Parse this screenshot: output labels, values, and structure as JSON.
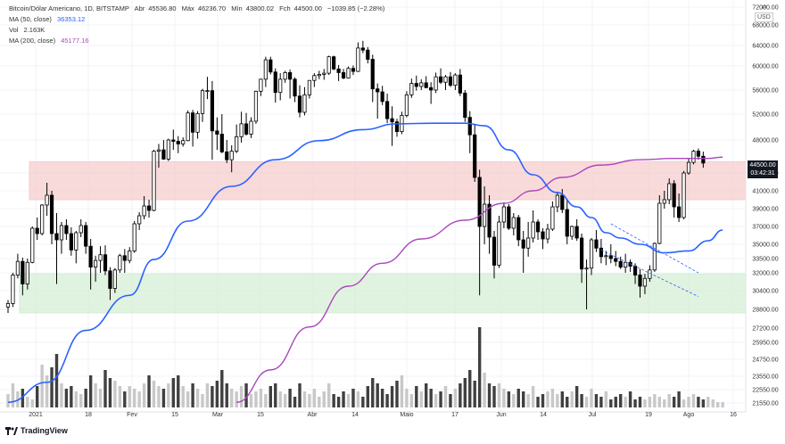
{
  "legend": {
    "symbol": "Bitcoin/Dólar Americano, 1D, BITSTAMP",
    "open_label": "Abr",
    "open": "45536.80",
    "high_label": "Máx",
    "high": "46236.70",
    "low_label": "Mín",
    "low": "43800.02",
    "close_label": "Fch",
    "close": "44500.00",
    "change": "−1039.85 (−2.28%)",
    "ma50_label": "MA (50, close)",
    "ma50_value": "36353.12",
    "vol_label": "Vol",
    "vol_value": "2.163K",
    "ma200_label": "MA (200, close)",
    "ma200_value": "45177.16"
  },
  "price_tag": {
    "price": "44500.00",
    "countdown": "03:42:31"
  },
  "currency": {
    "arrows": "⇄",
    "unit": "USD"
  },
  "branding": {
    "name": "TradingView"
  },
  "colors": {
    "up": "#ffffff",
    "down": "#000000",
    "ma50": "#2962ff",
    "ma200": "#ab47bc",
    "resistance_zone": "#f6c6c6",
    "support_zone": "#cfeccf",
    "volume_up": "#c8c8c8",
    "volume_down": "#404040",
    "trendline": "#2962ff"
  },
  "chart_data": {
    "type": "candlestick",
    "title": "Bitcoin/Dólar Americano, 1D, BITSTAMP",
    "y_ticks": [
      "21550.00",
      "22550.00",
      "23550.00",
      "24750.00",
      "25950.00",
      "27200.00",
      "28800.00",
      "30400.00",
      "32000.00",
      "33500.00",
      "35000.00",
      "37000.00",
      "39000.00",
      "41000.00",
      "43000.00",
      "48000.00",
      "52000.00",
      "56000.00",
      "60000.00",
      "64000.00",
      "68000.00",
      "72000.00"
    ],
    "x_ticks": [
      "2021",
      "18",
      "Fev",
      "15",
      "Mar",
      "15",
      "Abr",
      "14",
      "Maio",
      "17",
      "Jun",
      "14",
      "Jul",
      "19",
      "Ago",
      "16"
    ],
    "candles": [
      [
        29000,
        29600,
        28500,
        29300
      ],
      [
        29300,
        32000,
        29000,
        31800
      ],
      [
        31800,
        34000,
        31500,
        33200
      ],
      [
        33200,
        33600,
        30000,
        31000
      ],
      [
        31000,
        33500,
        30500,
        33100
      ],
      [
        33100,
        37000,
        33000,
        36800
      ],
      [
        36800,
        38000,
        35500,
        36200
      ],
      [
        36200,
        39500,
        36000,
        39400
      ],
      [
        39400,
        41900,
        38200,
        40500
      ],
      [
        40500,
        41000,
        35000,
        36200
      ],
      [
        36200,
        38500,
        31000,
        35500
      ],
      [
        35500,
        37500,
        34000,
        37100
      ],
      [
        37100,
        37800,
        35500,
        36200
      ],
      [
        36200,
        36900,
        33800,
        34400
      ],
      [
        34400,
        36500,
        33000,
        36300
      ],
      [
        36300,
        37800,
        35800,
        37100
      ],
      [
        37100,
        37500,
        34000,
        34800
      ],
      [
        34800,
        35600,
        30500,
        32600
      ],
      [
        32600,
        33800,
        31200,
        33300
      ],
      [
        33300,
        34800,
        32000,
        33900
      ],
      [
        33900,
        34900,
        31800,
        32200
      ],
      [
        32200,
        32600,
        29600,
        30600
      ],
      [
        30600,
        32500,
        30200,
        32300
      ],
      [
        32300,
        34000,
        32000,
        33800
      ],
      [
        33800,
        34500,
        32000,
        33300
      ],
      [
        33300,
        34700,
        33000,
        34300
      ],
      [
        34300,
        37600,
        34100,
        37300
      ],
      [
        37300,
        38600,
        36600,
        38200
      ],
      [
        38200,
        40400,
        37800,
        39300
      ],
      [
        39300,
        40000,
        38000,
        38800
      ],
      [
        38800,
        46500,
        38700,
        46300
      ],
      [
        46300,
        47400,
        43800,
        46500
      ],
      [
        46500,
        48000,
        45000,
        45100
      ],
      [
        45100,
        48200,
        44800,
        48000
      ],
      [
        48000,
        49600,
        46500,
        47800
      ],
      [
        47800,
        48600,
        46000,
        47400
      ],
      [
        47400,
        48400,
        47000,
        47900
      ],
      [
        47900,
        52600,
        47800,
        52200
      ],
      [
        52200,
        52700,
        47000,
        49200
      ],
      [
        49200,
        52500,
        48200,
        52100
      ],
      [
        52100,
        56200,
        50800,
        55900
      ],
      [
        55900,
        58200,
        54500,
        55900
      ],
      [
        55900,
        57500,
        45000,
        49400
      ],
      [
        49400,
        51500,
        46500,
        48900
      ],
      [
        48900,
        52000,
        46000,
        46200
      ],
      [
        46200,
        48000,
        44500,
        45000
      ],
      [
        45000,
        47200,
        43100,
        46300
      ],
      [
        46300,
        50400,
        46000,
        48500
      ],
      [
        48500,
        52400,
        47600,
        50500
      ],
      [
        50500,
        52200,
        48700,
        48900
      ],
      [
        48900,
        51500,
        48300,
        50900
      ],
      [
        50900,
        55900,
        50500,
        55800
      ],
      [
        55800,
        57900,
        55000,
        57800
      ],
      [
        57800,
        61800,
        56500,
        61200
      ],
      [
        61200,
        61800,
        58600,
        59000
      ],
      [
        59000,
        59600,
        53900,
        55600
      ],
      [
        55600,
        58800,
        54300,
        57800
      ],
      [
        57800,
        59200,
        57200,
        58900
      ],
      [
        58900,
        59400,
        54600,
        57800
      ],
      [
        57800,
        58100,
        54000,
        55000
      ],
      [
        55000,
        56800,
        51500,
        52300
      ],
      [
        52300,
        56500,
        51800,
        55200
      ],
      [
        55200,
        57600,
        54600,
        57600
      ],
      [
        57600,
        58800,
        56500,
        58400
      ],
      [
        58400,
        59200,
        57800,
        58600
      ],
      [
        58600,
        59500,
        57700,
        58800
      ],
      [
        58800,
        62000,
        58500,
        61800
      ],
      [
        61800,
        62000,
        59300,
        59500
      ],
      [
        59500,
        60200,
        57500,
        58900
      ],
      [
        58900,
        59500,
        57800,
        58000
      ],
      [
        58000,
        59900,
        57900,
        59600
      ],
      [
        59600,
        60100,
        58500,
        59100
      ],
      [
        59100,
        64600,
        59000,
        63500
      ],
      [
        63500,
        64900,
        62500,
        63100
      ],
      [
        63100,
        63700,
        60500,
        61300
      ],
      [
        61300,
        62200,
        54000,
        56200
      ],
      [
        56200,
        57100,
        51300,
        55700
      ],
      [
        55700,
        56700,
        53500,
        54100
      ],
      [
        54100,
        55400,
        50600,
        51300
      ],
      [
        51300,
        53300,
        47100,
        50800
      ],
      [
        50800,
        51300,
        48500,
        49300
      ],
      [
        49300,
        52400,
        48900,
        51800
      ],
      [
        51800,
        55800,
        51500,
        55200
      ],
      [
        55200,
        57900,
        54700,
        57100
      ],
      [
        57100,
        58400,
        55900,
        56600
      ],
      [
        56600,
        57800,
        56000,
        57200
      ],
      [
        57200,
        58300,
        56300,
        56400
      ],
      [
        56400,
        57300,
        53700,
        56000
      ],
      [
        56000,
        58900,
        55500,
        58200
      ],
      [
        58200,
        59600,
        57000,
        57300
      ],
      [
        57300,
        58500,
        56000,
        58200
      ],
      [
        58200,
        59000,
        56500,
        56800
      ],
      [
        56800,
        58800,
        56000,
        58500
      ],
      [
        58500,
        59500,
        55000,
        55500
      ],
      [
        55500,
        56000,
        50800,
        51500
      ],
      [
        51500,
        52500,
        46000,
        48800
      ],
      [
        48800,
        50500,
        42000,
        42500
      ],
      [
        42500,
        43500,
        30000,
        37000
      ],
      [
        37000,
        41500,
        35000,
        39500
      ],
      [
        39500,
        40500,
        34000,
        35800
      ],
      [
        35800,
        36500,
        31500,
        32800
      ],
      [
        32800,
        38200,
        32500,
        37500
      ],
      [
        37500,
        39700,
        36800,
        39200
      ],
      [
        39200,
        39500,
        36600,
        36800
      ],
      [
        36800,
        38500,
        36000,
        38000
      ],
      [
        38000,
        38300,
        34800,
        35500
      ],
      [
        35500,
        36500,
        32000,
        34600
      ],
      [
        34600,
        37500,
        33700,
        35700
      ],
      [
        35700,
        38800,
        35200,
        37500
      ],
      [
        37500,
        37800,
        35500,
        36400
      ],
      [
        36400,
        36800,
        34500,
        35600
      ],
      [
        35600,
        37300,
        35100,
        36700
      ],
      [
        36700,
        39800,
        36500,
        39200
      ],
      [
        39200,
        40900,
        38600,
        40500
      ],
      [
        40500,
        41200,
        38500,
        38900
      ],
      [
        38900,
        40000,
        35000,
        35900
      ],
      [
        35900,
        37100,
        35500,
        37000
      ],
      [
        37000,
        37800,
        35400,
        35700
      ],
      [
        35700,
        36200,
        31100,
        32400
      ],
      [
        32400,
        33400,
        28800,
        32500
      ],
      [
        32500,
        35700,
        31800,
        35500
      ],
      [
        35500,
        36600,
        34200,
        34600
      ],
      [
        34600,
        35600,
        33000,
        33700
      ],
      [
        33700,
        34300,
        32800,
        33800
      ],
      [
        33800,
        35000,
        33000,
        33500
      ],
      [
        33500,
        34300,
        32700,
        33200
      ],
      [
        33200,
        33700,
        32400,
        32600
      ],
      [
        32600,
        34000,
        32000,
        33100
      ],
      [
        33100,
        33400,
        32100,
        32700
      ],
      [
        32700,
        33000,
        31000,
        31800
      ],
      [
        31800,
        32400,
        29800,
        30800
      ],
      [
        30800,
        31900,
        30100,
        31500
      ],
      [
        31500,
        32800,
        31200,
        32300
      ],
      [
        32300,
        35200,
        32100,
        35100
      ],
      [
        35100,
        40500,
        35000,
        39600
      ],
      [
        39600,
        41000,
        39000,
        40000
      ],
      [
        40000,
        42400,
        39500,
        41800
      ],
      [
        41800,
        42200,
        38000,
        39200
      ],
      [
        39200,
        40700,
        37500,
        38000
      ],
      [
        38000,
        43300,
        37800,
        43000
      ],
      [
        43000,
        45200,
        42800,
        44600
      ],
      [
        44600,
        46500,
        44300,
        46300
      ],
      [
        46300,
        46700,
        45000,
        45537
      ],
      [
        45537,
        46237,
        43800,
        44500
      ]
    ],
    "ma50": [
      [
        0,
        21600
      ],
      [
        8,
        23100
      ],
      [
        16,
        27000
      ],
      [
        25,
        30000
      ],
      [
        30,
        33400
      ],
      [
        37,
        37600
      ],
      [
        46,
        41500
      ],
      [
        55,
        45000
      ],
      [
        64,
        47900
      ],
      [
        73,
        49600
      ],
      [
        80,
        50500
      ],
      [
        88,
        50600
      ],
      [
        94,
        50600
      ],
      [
        98,
        50200
      ],
      [
        103,
        46500
      ],
      [
        108,
        42800
      ],
      [
        113,
        40800
      ],
      [
        117,
        39200
      ],
      [
        120,
        38000
      ],
      [
        123,
        36300
      ],
      [
        126,
        35700
      ],
      [
        130,
        35000
      ],
      [
        135,
        34100
      ],
      [
        140,
        34300
      ],
      [
        144,
        35400
      ],
      [
        147,
        36600
      ]
    ],
    "ma200": [
      [
        47,
        21600
      ],
      [
        54,
        24000
      ],
      [
        62,
        27300
      ],
      [
        70,
        30800
      ],
      [
        77,
        33000
      ],
      [
        85,
        35600
      ],
      [
        94,
        37700
      ],
      [
        102,
        39600
      ],
      [
        108,
        41000
      ],
      [
        114,
        42500
      ],
      [
        122,
        44200
      ],
      [
        130,
        45000
      ],
      [
        137,
        45200
      ],
      [
        144,
        45200
      ],
      [
        147,
        45400
      ]
    ],
    "volume": [
      5,
      9,
      6,
      7,
      4,
      3,
      8,
      16,
      12,
      15,
      20,
      9,
      7,
      8,
      6,
      5,
      7,
      12,
      9,
      7,
      14,
      11,
      10,
      8,
      6,
      8,
      7,
      6,
      9,
      12,
      10,
      8,
      7,
      9,
      11,
      12,
      8,
      6,
      9,
      7,
      5,
      9,
      8,
      10,
      14,
      9,
      7,
      6,
      8,
      9,
      5,
      6,
      7,
      5,
      8,
      9,
      6,
      5,
      7,
      4,
      9,
      6,
      5,
      7,
      4,
      6,
      9,
      5,
      4,
      6,
      5,
      7,
      6,
      4,
      8,
      11,
      9,
      7,
      5,
      8,
      10,
      12,
      7,
      5,
      8,
      6,
      9,
      7,
      5,
      6,
      8,
      5,
      7,
      9,
      11,
      14,
      10,
      30,
      13,
      9,
      8,
      9,
      7,
      6,
      5,
      7,
      6,
      5,
      8,
      4,
      5,
      6,
      7,
      5,
      6,
      4,
      6,
      8,
      5,
      4,
      7,
      5,
      4,
      6,
      3,
      4,
      5,
      4,
      6,
      3,
      4,
      3,
      4,
      5,
      4,
      3,
      5,
      4,
      6,
      3,
      4,
      5,
      4,
      3,
      4,
      3,
      2,
      2
    ],
    "zones": [
      {
        "top": 44700,
        "bottom": 40000
      },
      {
        "top": 31900,
        "bottom": 28500
      }
    ],
    "trendlines": [
      [
        [
          124,
          37300
        ],
        [
          142,
          32000
        ]
      ],
      [
        [
          122,
          34400
        ],
        [
          142,
          29900
        ]
      ]
    ]
  }
}
